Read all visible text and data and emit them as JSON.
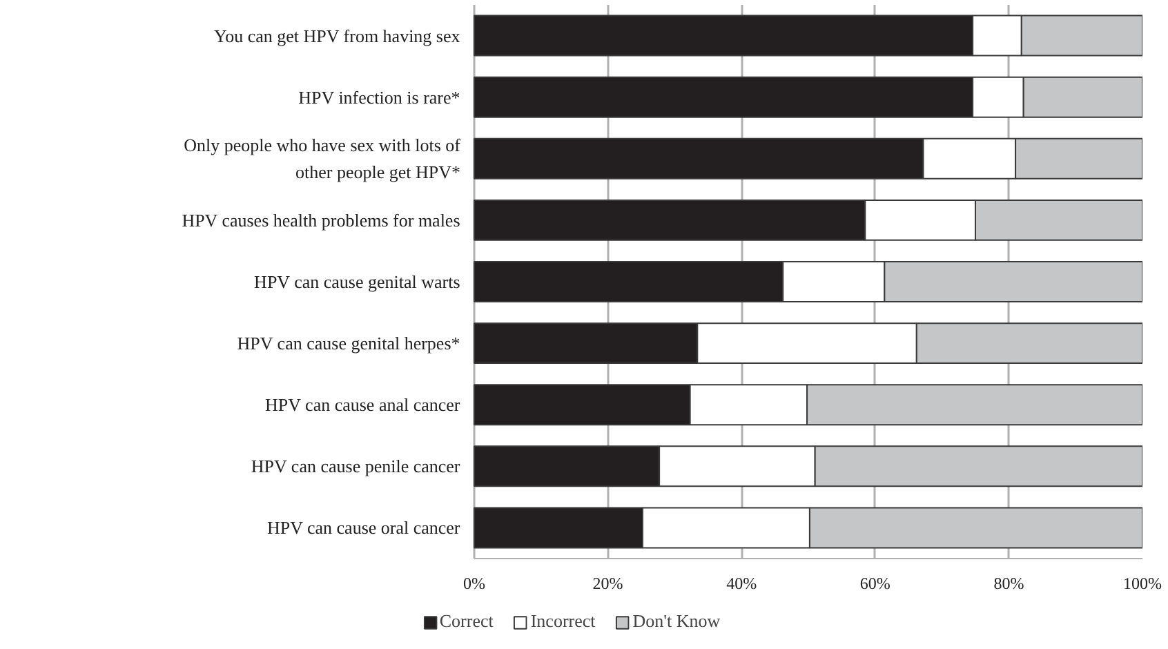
{
  "chart_data": {
    "type": "bar",
    "orientation": "horizontal",
    "stacked": true,
    "categories": [
      "You can get HPV from having sex",
      "HPV infection is rare*",
      "Only people who have sex with lots of other people get HPV*",
      "HPV causes health problems for males",
      "HPV can cause genital warts",
      "HPV can cause genital herpes*",
      "HPV can cause anal cancer",
      "HPV can cause penile cancer",
      "HPV can cause oral cancer"
    ],
    "series": [
      {
        "name": "Correct",
        "color": "#231f20",
        "values": [
          74.6,
          74.6,
          67.2,
          58.5,
          46.2,
          33.4,
          32.3,
          27.7,
          25.2
        ]
      },
      {
        "name": "Incorrect",
        "color": "#ffffff",
        "values": [
          7.3,
          7.6,
          13.8,
          16.5,
          15.2,
          32.8,
          17.5,
          23.3,
          25.0
        ]
      },
      {
        "name": "Don't Know",
        "color": "#c5c6c8",
        "values": [
          18.1,
          17.8,
          19.0,
          25.0,
          38.6,
          33.8,
          50.2,
          49.0,
          49.8
        ]
      }
    ],
    "xlim": [
      0,
      100
    ],
    "xticks": [
      {
        "value": 0,
        "label": "0%"
      },
      {
        "value": 20,
        "label": "20%"
      },
      {
        "value": 40,
        "label": "40%"
      },
      {
        "value": 60,
        "label": "60%"
      },
      {
        "value": 80,
        "label": "80%"
      },
      {
        "value": 100,
        "label": "100%"
      }
    ],
    "grid": "x",
    "legend": "bottom"
  }
}
